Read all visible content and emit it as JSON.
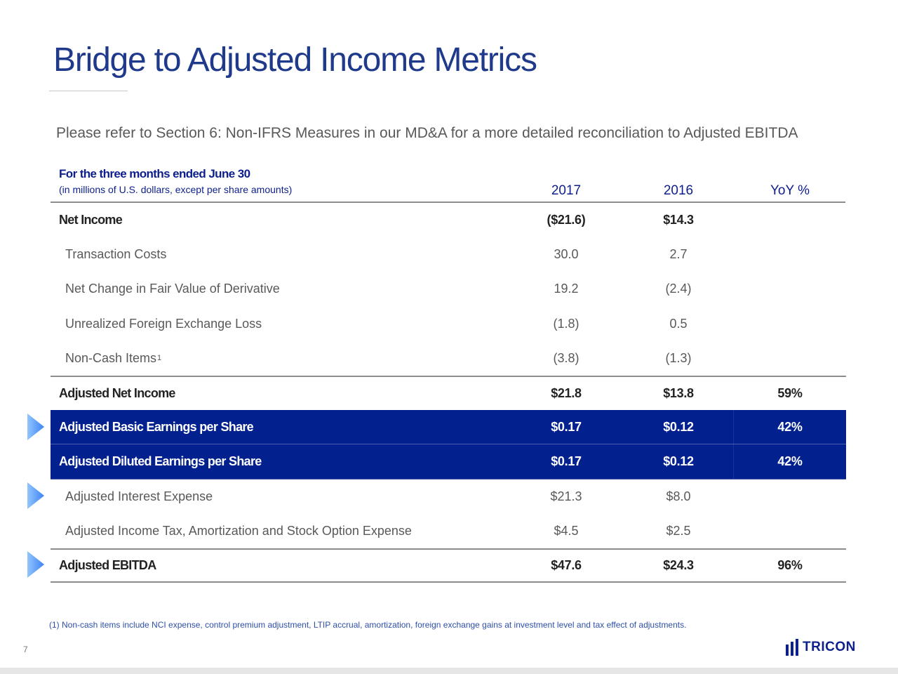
{
  "title": "Bridge to Adjusted Income Metrics",
  "subtitle": "Please refer to Section 6: Non-IFRS Measures in our MD&A for a more detailed reconciliation to Adjusted EBITDA",
  "table": {
    "period": "For the three months ended June 30",
    "units": "(in millions of U.S. dollars, except per share amounts)",
    "columns": [
      "2017",
      "2016",
      "YoY %"
    ],
    "rows": [
      {
        "label": "Net Income",
        "values": [
          "($21.6)",
          "$14.3",
          ""
        ]
      },
      {
        "label": "Transaction Costs",
        "values": [
          "30.0",
          "2.7",
          ""
        ]
      },
      {
        "label": "Net Change in Fair Value of Derivative",
        "values": [
          "19.2",
          "(2.4)",
          ""
        ]
      },
      {
        "label": "Unrealized Foreign Exchange Loss",
        "values": [
          "(1.8)",
          "0.5",
          ""
        ]
      },
      {
        "label": "Non-Cash Items",
        "footnote_mark": "1",
        "values": [
          "(3.8)",
          "(1.3)",
          ""
        ]
      },
      {
        "label": "Adjusted Net Income",
        "values": [
          "$21.8",
          "$13.8",
          "59%"
        ]
      },
      {
        "label": "Adjusted Basic Earnings per Share",
        "values": [
          "$0.17",
          "$0.12",
          "42%"
        ]
      },
      {
        "label": "Adjusted Diluted Earnings per Share",
        "values": [
          "$0.17",
          "$0.12",
          "42%"
        ]
      },
      {
        "label": "Adjusted Interest Expense",
        "values": [
          "$21.3",
          "$8.0",
          ""
        ]
      },
      {
        "label": "Adjusted Income Tax, Amortization and Stock Option Expense",
        "values": [
          "$4.5",
          "$2.5",
          ""
        ]
      },
      {
        "label": "Adjusted EBITDA",
        "values": [
          "$47.6",
          "$24.3",
          "96%"
        ]
      }
    ]
  },
  "footnote": "(1) Non-cash items include NCI expense, control premium adjustment, LTIP accrual, amortization, foreign exchange gains at investment level and tax effect of adjustments.",
  "page_number": "7",
  "logo": {
    "text": "TRICON",
    "icon": "tricon-bars-icon"
  },
  "colors": {
    "title": "#1f3a8a",
    "header_text": "#0d1f8c",
    "highlight_fill": "#02218f",
    "arrow": "#3b82f6"
  }
}
